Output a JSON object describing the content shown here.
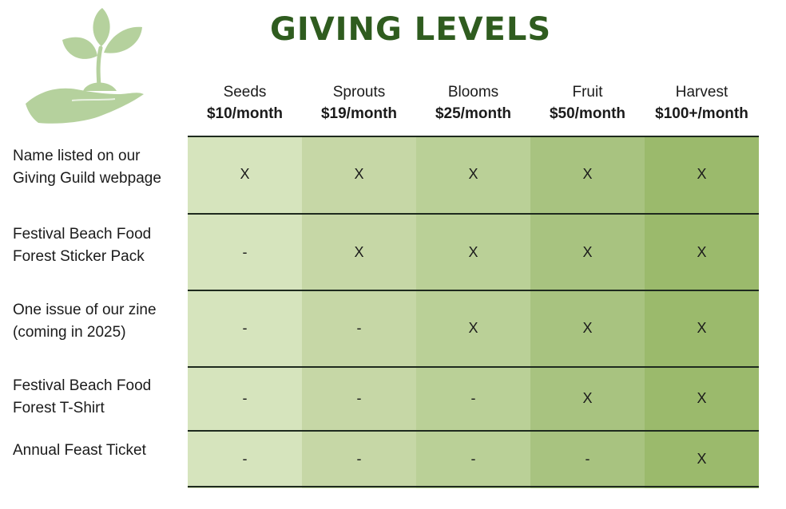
{
  "title": "GIVING LEVELS",
  "logo": {
    "icon": "sprout-in-hand-icon",
    "colors": {
      "leaf": "#b5d19d",
      "hand": "#b5d19d"
    }
  },
  "tiers": [
    {
      "name": "Seeds",
      "price": "$10/month",
      "color": "#d6e4bd"
    },
    {
      "name": "Sprouts",
      "price": "$19/month",
      "color": "#c6d7a6"
    },
    {
      "name": "Blooms",
      "price": "$25/month",
      "color": "#bad097"
    },
    {
      "name": "Fruit",
      "price": "$50/month",
      "color": "#a8c380"
    },
    {
      "name": "Harvest",
      "price": "$100+/month",
      "color": "#9bba6c"
    }
  ],
  "benefits": [
    {
      "label": [
        "Name listed on our",
        "Giving Guild webpage"
      ],
      "values": [
        "X",
        "X",
        "X",
        "X",
        "X"
      ]
    },
    {
      "label": [
        "Festival Beach Food",
        "Forest Sticker Pack"
      ],
      "values": [
        "-",
        "X",
        "X",
        "X",
        "X"
      ]
    },
    {
      "label": [
        "One issue of our zine",
        "(coming in 2025)"
      ],
      "values": [
        "-",
        "-",
        "X",
        "X",
        "X"
      ]
    },
    {
      "label": [
        "Festival Beach Food",
        "Forest T-Shirt"
      ],
      "values": [
        "-",
        "-",
        "-",
        "X",
        "X"
      ]
    },
    {
      "label": [
        "Annual Feast Ticket"
      ],
      "values": [
        "-",
        "-",
        "-",
        "-",
        "X"
      ]
    }
  ]
}
